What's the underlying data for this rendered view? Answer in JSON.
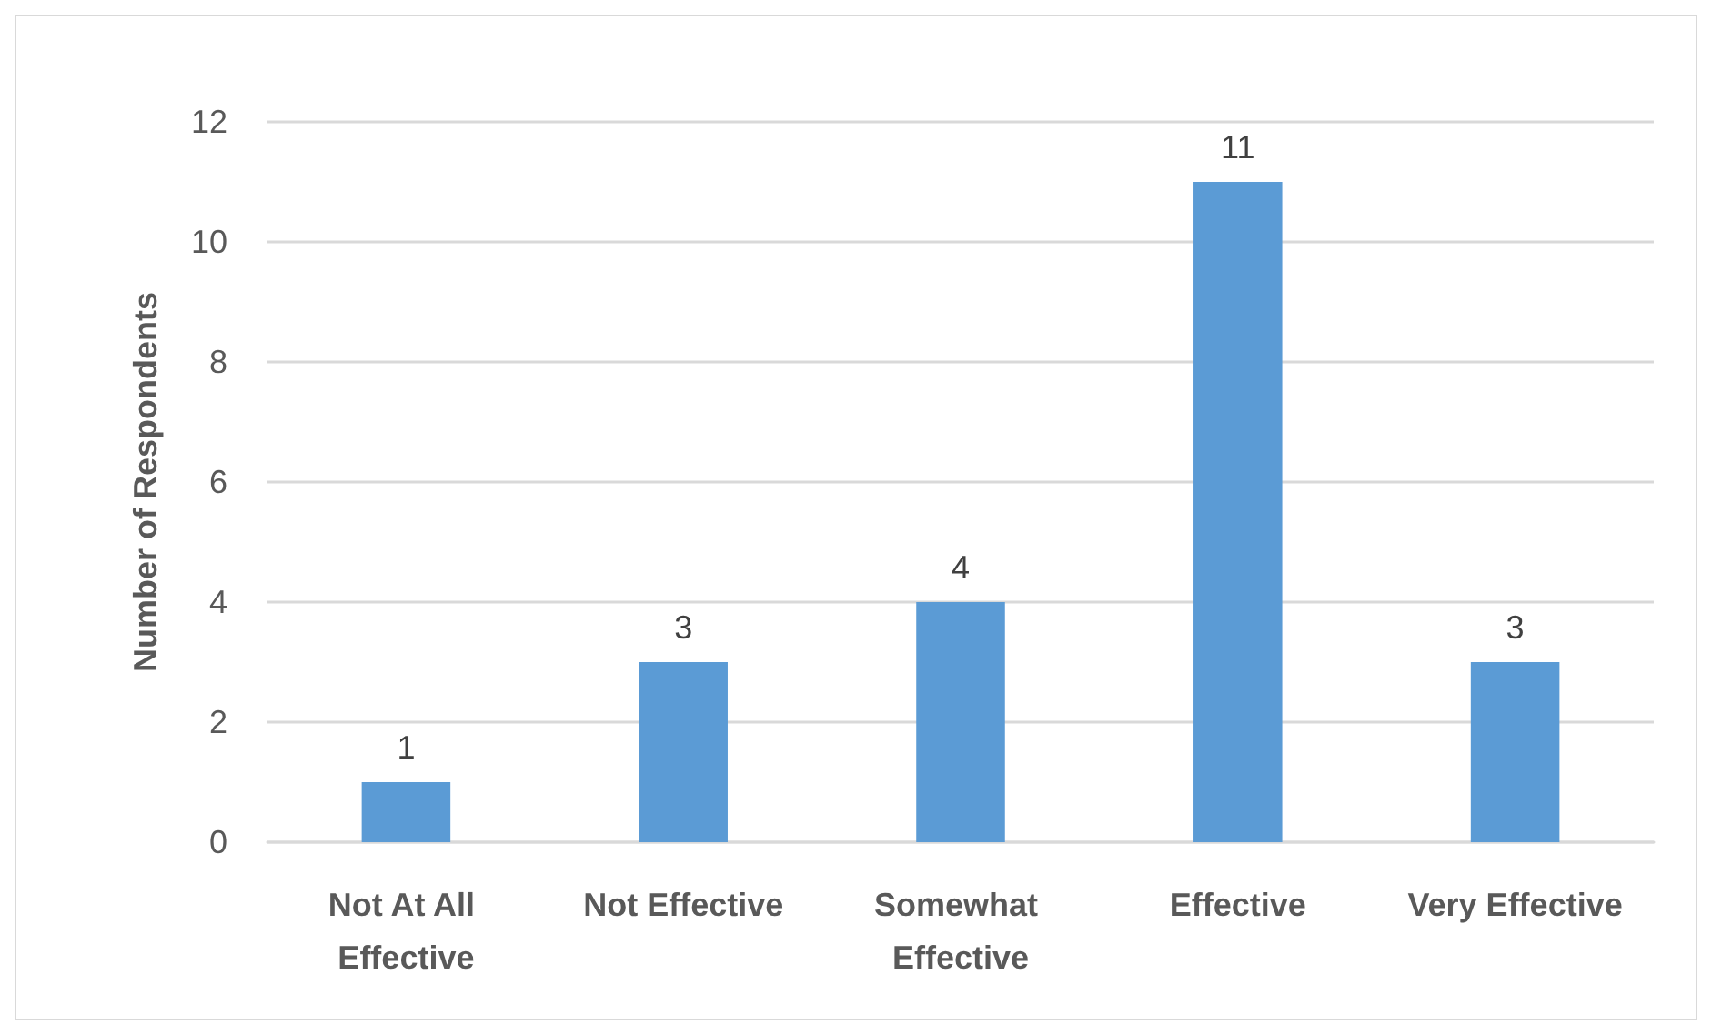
{
  "chart_data": {
    "type": "bar",
    "ylabel": "Number of Respondents",
    "categories": [
      "Not At All Effective",
      "Not Effective",
      "Somewhat Effective",
      "Effective",
      "Very Effective"
    ],
    "values": [
      1,
      3,
      4,
      11,
      3
    ],
    "color": "#5b9bd5",
    "ylim": [
      0,
      12
    ],
    "yticks": [
      0,
      2,
      4,
      6,
      8,
      10,
      12
    ],
    "grid": "y",
    "data_labels": true
  }
}
